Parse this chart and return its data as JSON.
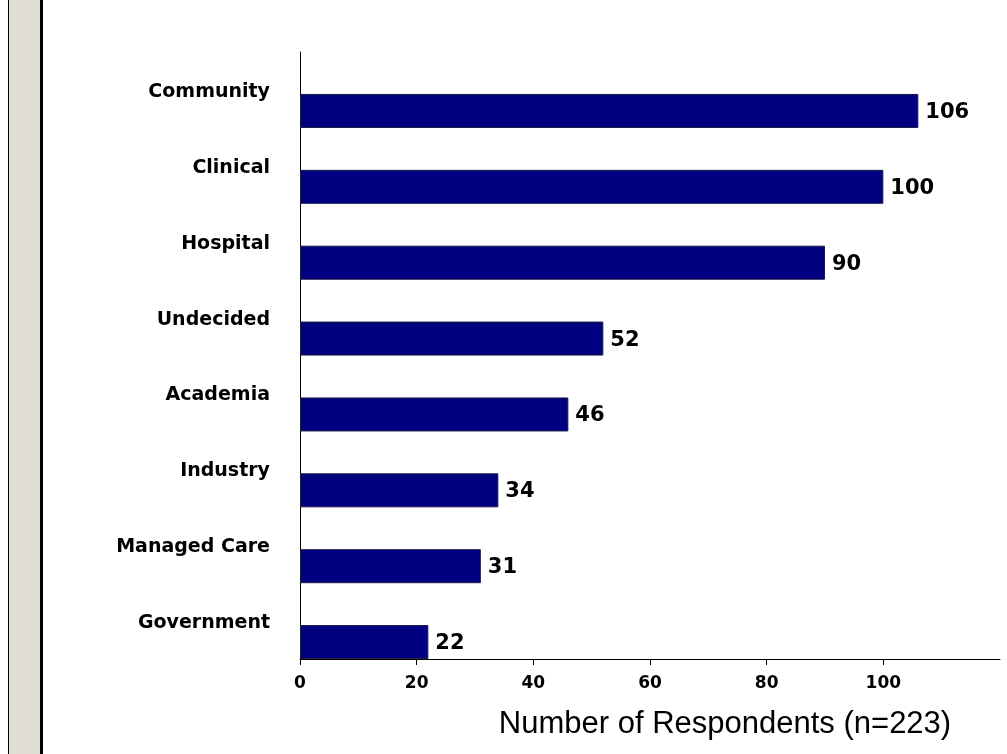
{
  "chart_data": {
    "type": "bar",
    "orientation": "horizontal",
    "categories": [
      "Community",
      "Clinical",
      "Hospital",
      "Undecided",
      "Academia",
      "Industry",
      "Managed Care",
      "Government"
    ],
    "values": [
      106,
      100,
      90,
      52,
      46,
      34,
      31,
      22
    ],
    "color": "#000080",
    "xlabel": "Number of Respondents (n=223)",
    "xlim": [
      0,
      120
    ],
    "xticks": [
      0,
      20,
      40,
      60,
      80,
      100
    ],
    "data_labels": true
  }
}
